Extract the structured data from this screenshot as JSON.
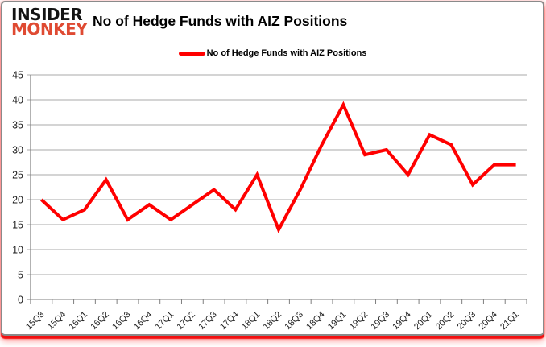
{
  "logo": {
    "line1": "INSIDER",
    "line2": "MONKEY"
  },
  "title": "No of Hedge Funds with AIZ Positions",
  "legend": {
    "label": "No of Hedge Funds with AIZ Positions"
  },
  "colors": {
    "series_line": "#ff0000",
    "logo_red": "#df4a32",
    "gridline": "#a8a8a8",
    "axis": "#7f7f7f",
    "tick_label": "#1c1c1c"
  },
  "chart_data": {
    "type": "line",
    "title": "No of Hedge Funds with AIZ Positions",
    "categories": [
      "15Q3",
      "15Q4",
      "16Q1",
      "16Q2",
      "16Q3",
      "16Q4",
      "17Q1",
      "17Q2",
      "17Q3",
      "17Q4",
      "18Q1",
      "18Q2",
      "18Q3",
      "18Q4",
      "19Q1",
      "19Q2",
      "19Q3",
      "19Q4",
      "20Q1",
      "20Q2",
      "20Q3",
      "20Q4",
      "21Q1"
    ],
    "series": [
      {
        "name": "No of Hedge Funds with AIZ Positions",
        "values": [
          20,
          16,
          18,
          24,
          16,
          19,
          16,
          19,
          22,
          18,
          25,
          14,
          22,
          31,
          39,
          29,
          30,
          25,
          33,
          31,
          23,
          27,
          27
        ]
      }
    ],
    "ylim": [
      0,
      45
    ],
    "ytick_step": 5,
    "xlabel": "",
    "ylabel": "",
    "grid": true,
    "legend_position": "top",
    "line_color": "#ff0000"
  }
}
